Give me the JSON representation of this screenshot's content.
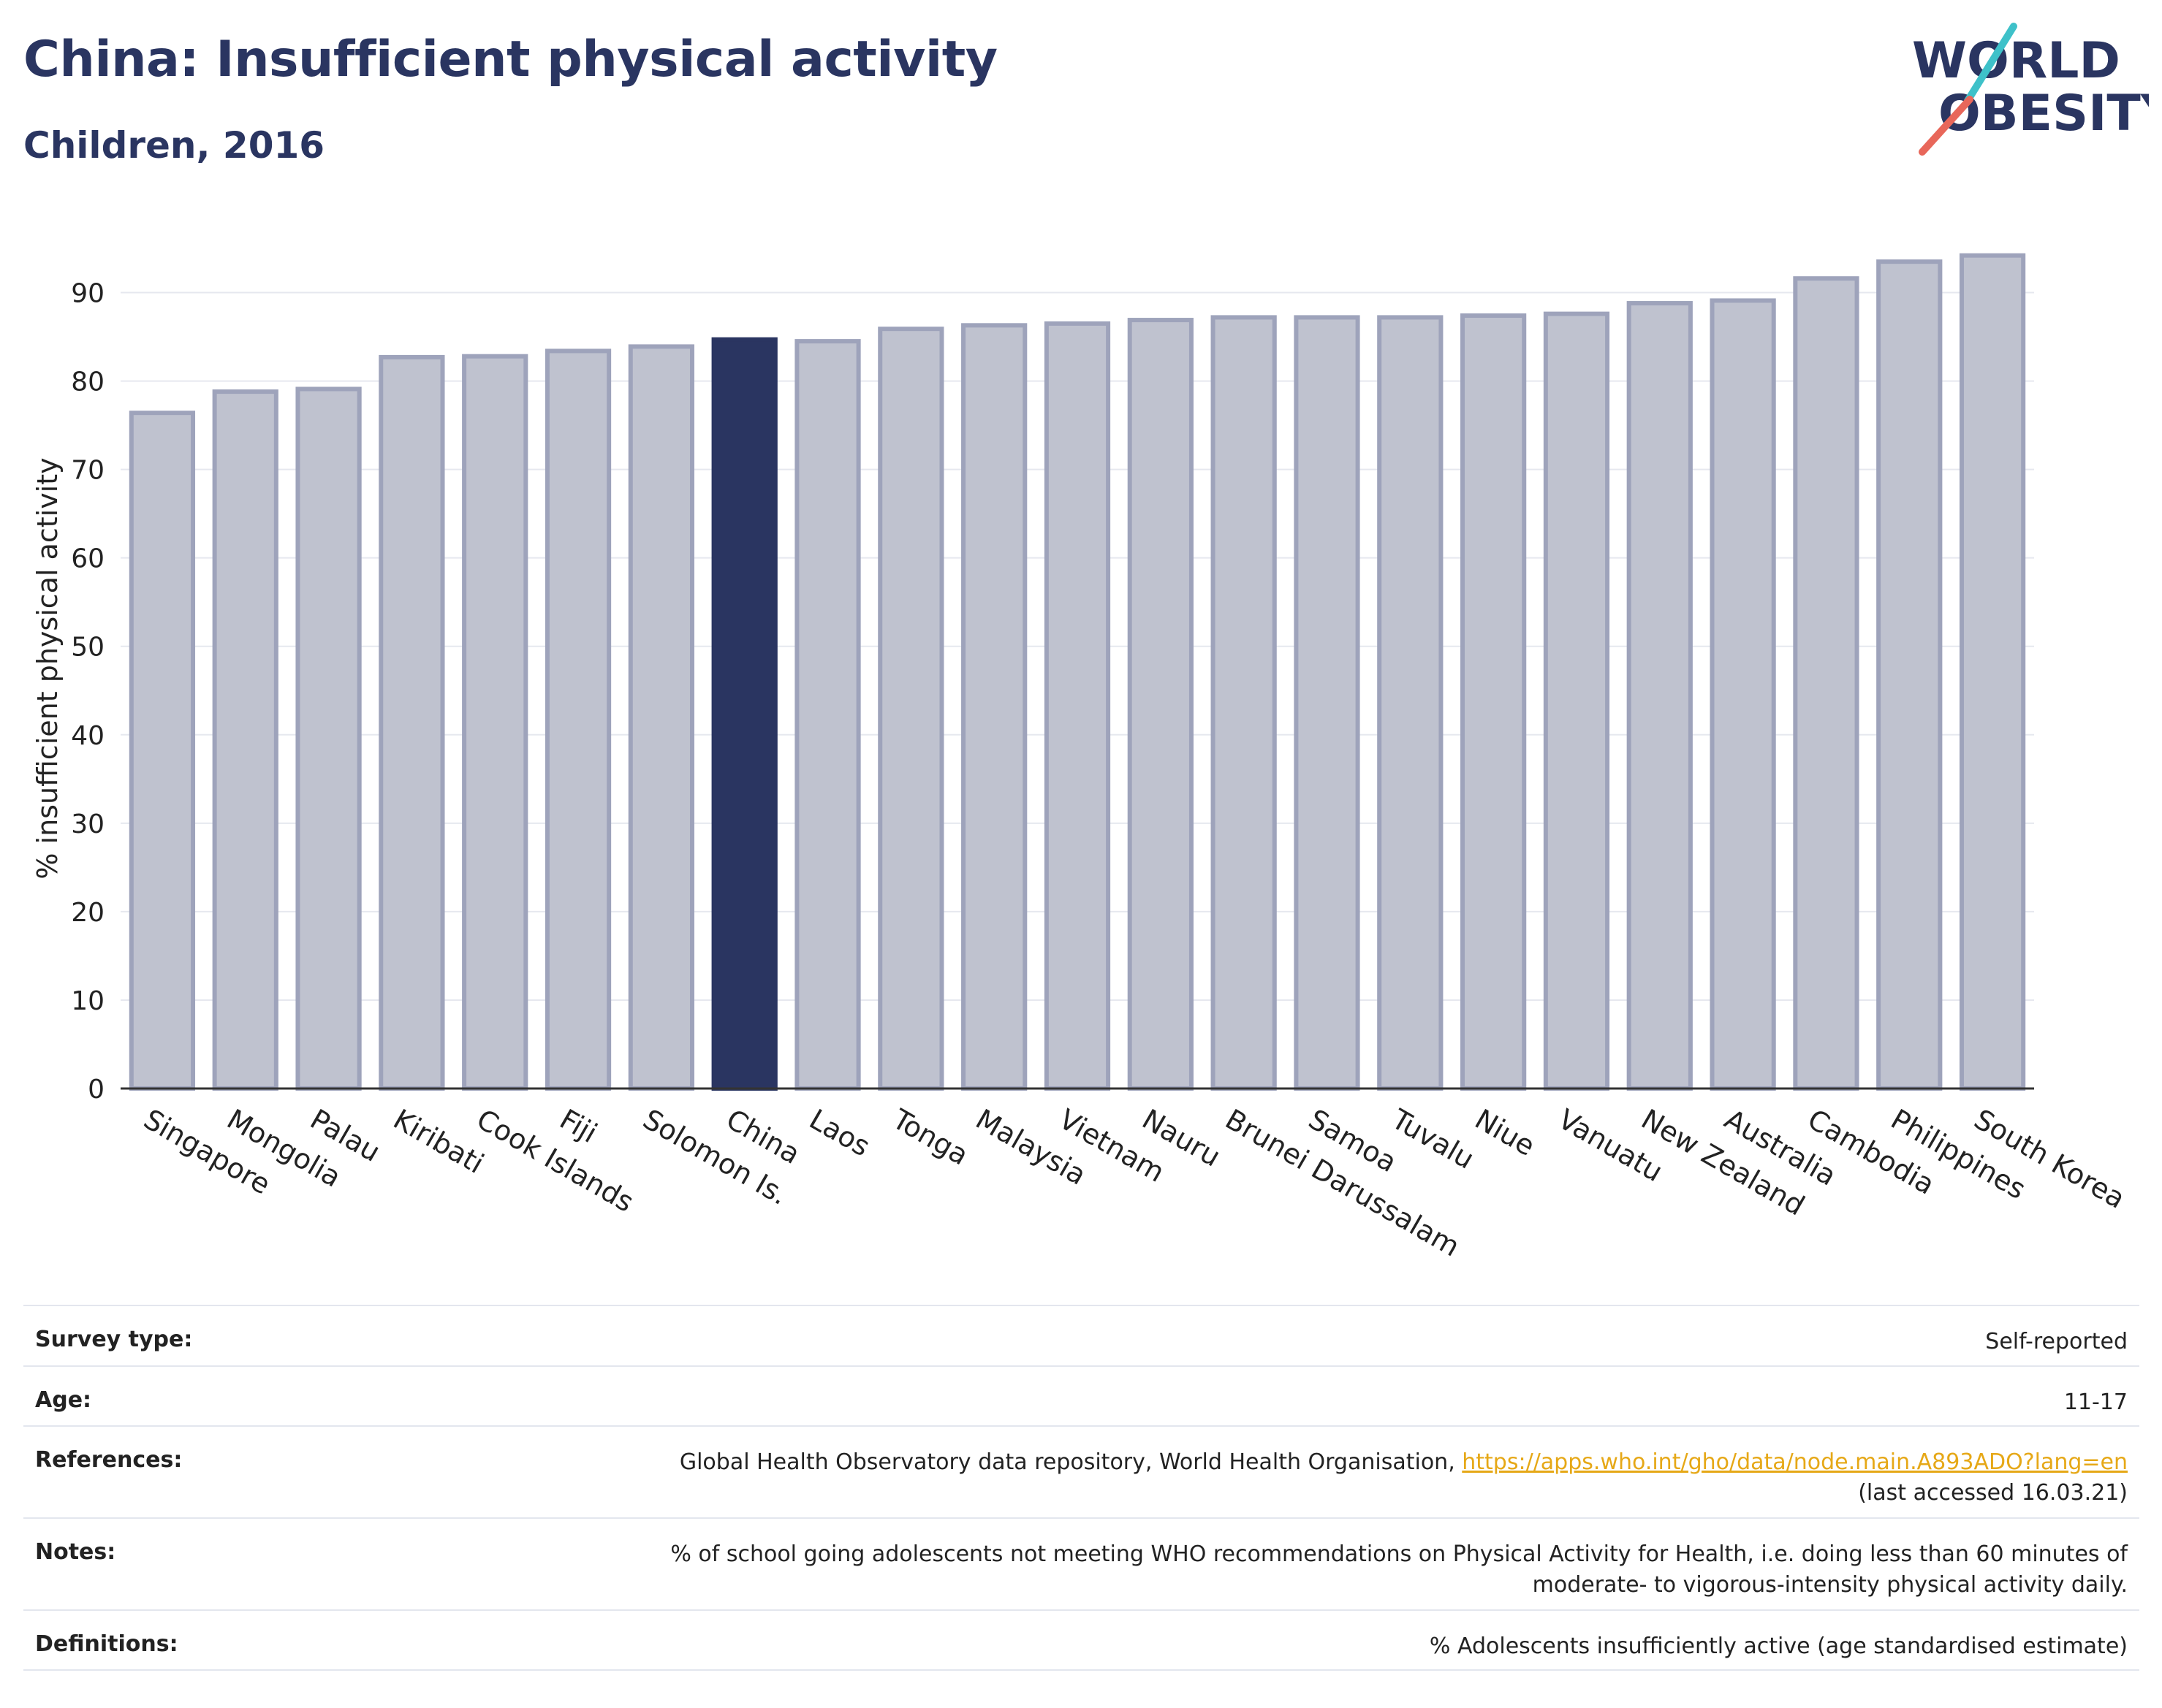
{
  "header": {
    "title": "China: Insufficient physical activity",
    "subtitle": "Children, 2016"
  },
  "logo": {
    "line1": "WORLD",
    "line2": "OBESITY",
    "colors": {
      "navy": "#2a3561",
      "teal": "#3ec1c9",
      "coral": "#e8675a"
    }
  },
  "chart_data": {
    "type": "bar",
    "title": "China: Insufficient physical activity",
    "subtitle": "Children, 2016",
    "xlabel": "",
    "ylabel": "% insufficient physical activity",
    "ylim": [
      0,
      95
    ],
    "yticks": [
      0,
      10,
      20,
      30,
      40,
      50,
      60,
      70,
      80,
      90
    ],
    "grid": true,
    "highlight": "China",
    "colors": {
      "default_fill": "#bfc2cf",
      "default_stroke": "#9ea3bb",
      "highlight": "#2a3561"
    },
    "categories": [
      "Singapore",
      "Mongolia",
      "Palau",
      "Kiribati",
      "Cook Islands",
      "Fiji",
      "Solomon Is.",
      "China",
      "Laos",
      "Tonga",
      "Malaysia",
      "Vietnam",
      "Nauru",
      "Brunei Darussalam",
      "Samoa",
      "Tuvalu",
      "Niue",
      "Vanuatu",
      "New Zealand",
      "Australia",
      "Cambodia",
      "Philippines",
      "South Korea"
    ],
    "values": [
      76.4,
      78.8,
      79.1,
      82.7,
      82.8,
      83.4,
      83.9,
      84.7,
      84.5,
      85.9,
      86.3,
      86.5,
      86.9,
      87.2,
      87.2,
      87.2,
      87.4,
      87.6,
      88.8,
      89.1,
      91.6,
      93.5,
      94.2
    ]
  },
  "info": {
    "survey_type_label": "Survey type:",
    "survey_type_value": "Self-reported",
    "age_label": "Age:",
    "age_value": "11-17",
    "references_label": "References:",
    "references_text": "Global Health Observatory data repository, World Health Organisation, ",
    "references_link": "https://apps.who.int/gho/data/node.main.A893ADO?lang=en",
    "references_accessed": "(last accessed 16.03.21)",
    "notes_label": "Notes:",
    "notes_line1": "% of school going adolescents not meeting WHO recommendations on Physical Activity for Health, i.e. doing less than 60 minutes of",
    "notes_line2": "moderate- to vigorous-intensity physical activity daily.",
    "definitions_label": "Definitions:",
    "definitions_value": "% Adolescents insufficiently active (age standardised estimate)"
  }
}
